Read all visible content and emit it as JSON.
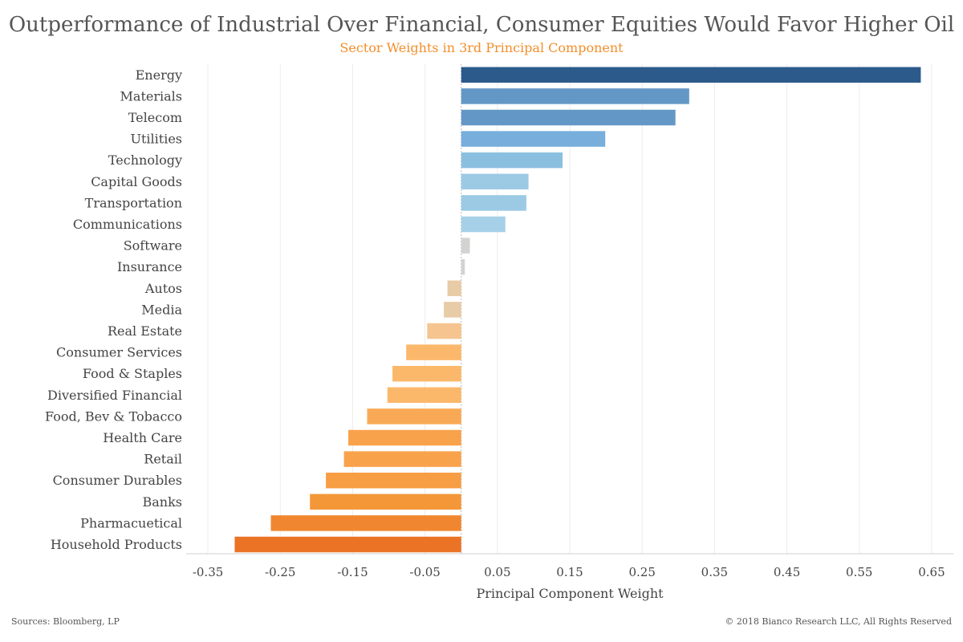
{
  "header": {
    "title": "Outperformance of Industrial Over Financial, Consumer Equities Would Favor Higher Oil",
    "subtitle": "Sector Weights in 3rd Principal Component"
  },
  "footer": {
    "source": "Sources: Bloomberg, LP",
    "copyright": "© 2018 Bianco Research LLC,  All Rights Reserved"
  },
  "chart_data": {
    "type": "bar",
    "orientation": "horizontal",
    "title": "Outperformance of Industrial Over Financial, Consumer Equities Would Favor Higher Oil",
    "subtitle": "Sector Weights in 3rd Principal Component",
    "xlabel": "Principal Component Weight",
    "ylabel": "",
    "xlim": [
      -0.38,
      0.68
    ],
    "xticks": [
      -0.35,
      -0.25,
      -0.15,
      -0.05,
      0.05,
      0.15,
      0.25,
      0.35,
      0.45,
      0.55,
      0.65
    ],
    "xtick_labels": [
      "-0.35",
      "-0.25",
      "-0.15",
      "-0.05",
      "0.05",
      "0.15",
      "0.25",
      "0.35",
      "0.45",
      "0.55",
      "0.65"
    ],
    "grid": true,
    "categories": [
      "Energy",
      "Materials",
      "Telecom",
      "Utilities",
      "Technology",
      "Capital Goods",
      "Transportation",
      "Communications",
      "Software",
      "Insurance",
      "Autos",
      "Media",
      "Real Estate",
      "Consumer Services",
      "Food & Staples",
      "Diversified Financial",
      "Food, Bev & Tobacco",
      "Health Care",
      "Retail",
      "Consumer Durables",
      "Banks",
      "Pharmacuetical",
      "Household Products"
    ],
    "values": [
      0.635,
      0.315,
      0.296,
      0.199,
      0.14,
      0.093,
      0.09,
      0.061,
      0.012,
      0.005,
      -0.019,
      -0.024,
      -0.047,
      -0.076,
      -0.095,
      -0.102,
      -0.13,
      -0.156,
      -0.162,
      -0.187,
      -0.209,
      -0.263,
      -0.313
    ],
    "colors": [
      "#2c5a8a",
      "#6397c6",
      "#6397c6",
      "#77aedb",
      "#8bbfe0",
      "#9ccae5",
      "#9ccae5",
      "#a6d0e7",
      "#d3d3d1",
      "#d3d3d1",
      "#e8cba7",
      "#e8cba7",
      "#f5c48f",
      "#fbb86b",
      "#fbb86b",
      "#fbb86b",
      "#f9a955",
      "#f9a24c",
      "#f9a24c",
      "#f79d44",
      "#f49738",
      "#f08730",
      "#eb7326"
    ]
  }
}
